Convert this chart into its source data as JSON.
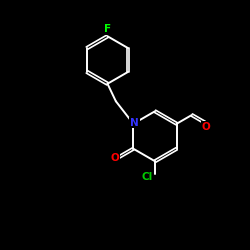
{
  "background_color": "#000000",
  "bond_color": "#ffffff",
  "atom_colors": {
    "F": "#00ff00",
    "Cl": "#00cc00",
    "O": "#ff0000",
    "N": "#3333ff",
    "C": "#ffffff"
  },
  "figsize": [
    2.5,
    2.5
  ],
  "dpi": 100
}
